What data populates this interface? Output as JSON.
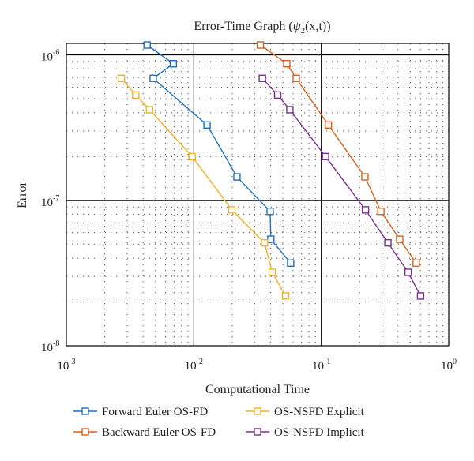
{
  "chart_data": {
    "type": "line",
    "title": "Error-Time Graph (",
    "title_symbol": "ψ",
    "title_subscript": "2",
    "title_args": "(x,t))",
    "xlabel": "Computational Time",
    "ylabel": "Error",
    "x_scale": "log",
    "y_scale": "log",
    "xlim": [
      0.001,
      1
    ],
    "ylim": [
      1e-08,
      1.2e-06
    ],
    "grid": true,
    "legend_position": "bottom",
    "x_ticks": [
      {
        "value": 0.001,
        "base": "10",
        "exp": "-3"
      },
      {
        "value": 0.01,
        "base": "10",
        "exp": "-2"
      },
      {
        "value": 0.1,
        "base": "10",
        "exp": "-1"
      },
      {
        "value": 1,
        "base": "10",
        "exp": "0"
      }
    ],
    "y_ticks": [
      {
        "value": 1e-08,
        "base": "10",
        "exp": "-8"
      },
      {
        "value": 1e-07,
        "base": "10",
        "exp": "-7"
      },
      {
        "value": 1e-06,
        "base": "10",
        "exp": "-6"
      }
    ],
    "series": [
      {
        "name": "Forward Euler OS-FD",
        "color": "#1f6fbf",
        "x": [
          0.0043,
          0.0069,
          0.0048,
          0.0127,
          0.0218,
          0.0397,
          0.0402,
          0.0575
        ],
        "y": [
          1.17e-06,
          8.7e-07,
          6.9e-07,
          3.3e-07,
          1.45e-07,
          8.4e-08,
          5.4e-08,
          3.7e-08
        ]
      },
      {
        "name": "Backward Euler OS-FD",
        "color": "#d9611c",
        "x": [
          0.0333,
          0.0536,
          0.0636,
          0.1138,
          0.2202,
          0.2936,
          0.4124,
          0.5554
        ],
        "y": [
          1.17e-06,
          8.7e-07,
          6.9e-07,
          3.3e-07,
          1.45e-07,
          8.4e-08,
          5.4e-08,
          3.7e-08
        ]
      },
      {
        "name": "OS-NSFD Explicit",
        "color": "#f0b323",
        "x": [
          0.0027,
          0.0035,
          0.0045,
          0.0097,
          0.0199,
          0.0359,
          0.0412,
          0.0525
        ],
        "y": [
          6.9e-07,
          5.3e-07,
          4.2e-07,
          2e-07,
          8.6e-08,
          5.1e-08,
          3.2e-08,
          2.2e-08
        ]
      },
      {
        "name": "OS-NSFD Implicit",
        "color": "#7b2e8f",
        "x": [
          0.0345,
          0.0455,
          0.0567,
          0.1081,
          0.2222,
          0.3335,
          0.4805,
          0.6018
        ],
        "y": [
          6.9e-07,
          5.3e-07,
          4.2e-07,
          2e-07,
          8.6e-08,
          5.1e-08,
          3.2e-08,
          2.2e-08
        ]
      }
    ]
  }
}
